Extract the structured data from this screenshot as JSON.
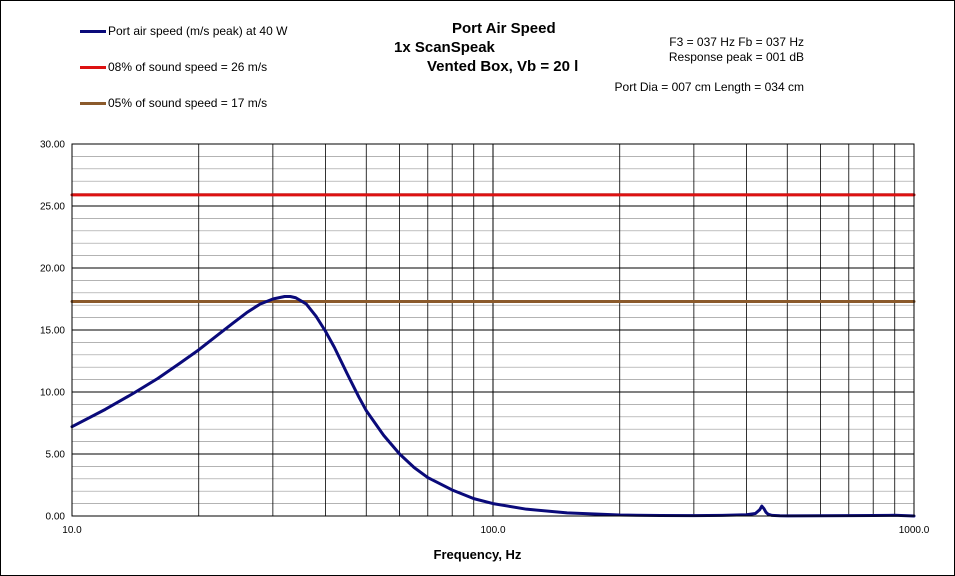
{
  "chart_data": {
    "type": "line",
    "title_lines": [
      "Port Air  Speed",
      "1x ScanSpeak",
      "Vented Box, Vb = 20 l"
    ],
    "info_lines": [
      "F3 = 037 Hz  Fb = 037 Hz",
      "Response  peak = 001 dB",
      "Port Dia = 007 cm  Length  = 034 cm"
    ],
    "xlabel": "Frequency, Hz",
    "ylabel": "",
    "x_scale": "log",
    "xlim": [
      10,
      1000
    ],
    "ylim": [
      0,
      30
    ],
    "x_tick_labels": [
      "10.0",
      "100.0",
      "1000.0"
    ],
    "y_tick_labels": [
      "0.00",
      "5.00",
      "10.00",
      "15.00",
      "20.00",
      "25.00",
      "30.00"
    ],
    "grid": true,
    "legend_position": "top-left",
    "series": [
      {
        "name": "Port air speed (m/s peak) at 40 W",
        "color": "#0a0a7a",
        "x": [
          10,
          12,
          14,
          16,
          18,
          20,
          22,
          24,
          26,
          28,
          30,
          32,
          33,
          34,
          36,
          38,
          40,
          42,
          45,
          48,
          50,
          55,
          60,
          65,
          70,
          80,
          90,
          100,
          120,
          150,
          200,
          250,
          300,
          350,
          400,
          420,
          430,
          435,
          440,
          445,
          450,
          460,
          480,
          500,
          600,
          700,
          800,
          900,
          1000
        ],
        "y": [
          7.2,
          8.6,
          9.9,
          11.1,
          12.3,
          13.4,
          14.5,
          15.5,
          16.4,
          17.1,
          17.5,
          17.7,
          17.7,
          17.6,
          17.1,
          16.1,
          14.9,
          13.6,
          11.5,
          9.6,
          8.5,
          6.5,
          5.0,
          3.9,
          3.1,
          2.1,
          1.4,
          1.0,
          0.55,
          0.25,
          0.08,
          0.04,
          0.03,
          0.05,
          0.1,
          0.2,
          0.5,
          0.8,
          0.6,
          0.3,
          0.15,
          0.05,
          0.02,
          0.01,
          0.02,
          0.03,
          0.04,
          0.06,
          0.0
        ]
      },
      {
        "name": "08% of sound speed = 26 m/s",
        "color": "#dd1111",
        "x": [
          10,
          1000
        ],
        "y": [
          25.9,
          25.9
        ]
      },
      {
        "name": "05% of sound speed = 17 m/s",
        "color": "#8b5a2b",
        "x": [
          10,
          1000
        ],
        "y": [
          17.3,
          17.3
        ]
      }
    ]
  }
}
